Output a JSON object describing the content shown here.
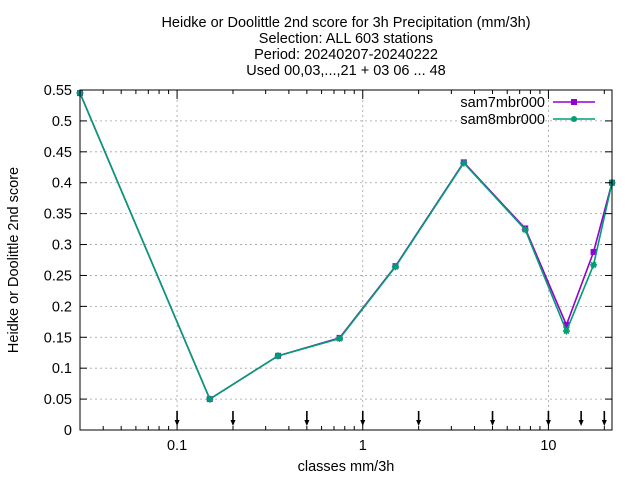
{
  "chart_data": {
    "type": "line",
    "title": [
      "Heidke or Doolittle 2nd score  for 3h Precipitation (mm/3h)",
      "Selection: ALL    603 stations",
      "Period: 20240207-20240222",
      "Used 00,03,...,21 + 03 06 ... 48"
    ],
    "xlabel": "classes mm/3h",
    "ylabel": "Heidke or Doolittle 2nd score",
    "x_scale": "log",
    "xlim": [
      0.03,
      22
    ],
    "ylim": [
      0,
      0.55
    ],
    "x_ticks": [
      0.1,
      1,
      10
    ],
    "x_tick_labels": [
      "0.1",
      "1",
      "10"
    ],
    "y_ticks": [
      0,
      0.05,
      0.1,
      0.15,
      0.2,
      0.25,
      0.3,
      0.35,
      0.4,
      0.45,
      0.5,
      0.55
    ],
    "y_tick_labels": [
      "0",
      "0.05",
      "0.1",
      "0.15",
      "0.2",
      "0.25",
      "0.3",
      "0.35",
      "0.4",
      "0.45",
      "0.5",
      "0.55"
    ],
    "grid": true,
    "legend_position": "top-right",
    "x": [
      0.03,
      0.15,
      0.35,
      0.75,
      1.5,
      3.5,
      7.5,
      12.5,
      17.5,
      22
    ],
    "class_markers": [
      0.1,
      0.2,
      0.5,
      1,
      2,
      5,
      10,
      15,
      20
    ],
    "series": [
      {
        "name": "sam7mbr000",
        "color": "#9400d3",
        "values": [
          0.545,
          0.05,
          0.12,
          0.149,
          0.265,
          0.433,
          0.326,
          0.17,
          0.288,
          0.4
        ]
      },
      {
        "name": "sam8mbr000",
        "color": "#009e73",
        "values": [
          0.545,
          0.05,
          0.12,
          0.148,
          0.264,
          0.432,
          0.324,
          0.16,
          0.267,
          0.4
        ]
      }
    ]
  }
}
